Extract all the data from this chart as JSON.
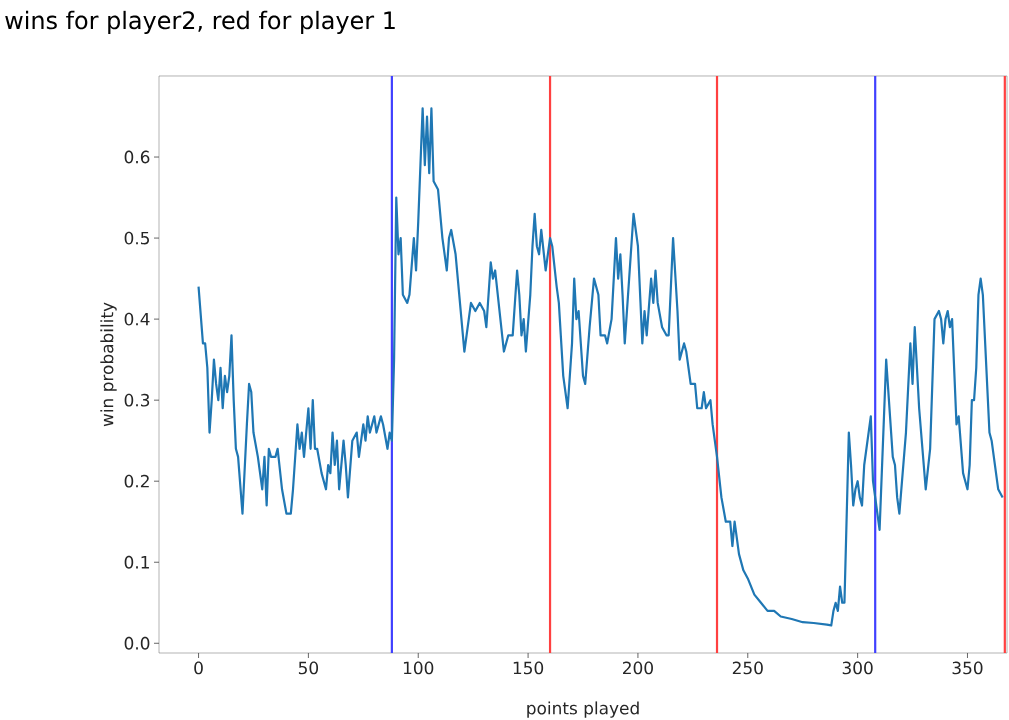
{
  "chart_data": {
    "type": "line",
    "title": "wins for player2, red for player 1",
    "xlabel": "points played",
    "ylabel": "win probability",
    "xlim": [
      -18,
      368
    ],
    "ylim": [
      -0.012,
      0.7
    ],
    "xticks": [
      0,
      50,
      100,
      150,
      200,
      250,
      300,
      350
    ],
    "yticks": [
      {
        "value": 0,
        "label": "0.0"
      },
      {
        "value": 0.1,
        "label": "0.1"
      },
      {
        "value": 0.2,
        "label": "0.2"
      },
      {
        "value": 0.3,
        "label": "0.3"
      },
      {
        "value": 0.4,
        "label": "0.4"
      },
      {
        "value": 0.5,
        "label": "0.5"
      },
      {
        "value": 0.6,
        "label": "0.6"
      }
    ],
    "grid": false,
    "ref_lines": [
      {
        "axis": "x",
        "value": 88,
        "color": "#4040ff"
      },
      {
        "axis": "x",
        "value": 160,
        "color": "#ff4040"
      },
      {
        "axis": "x",
        "value": 236,
        "color": "#ff4040"
      },
      {
        "axis": "x",
        "value": 308,
        "color": "#4040ff"
      },
      {
        "axis": "x",
        "value": 367,
        "color": "#ff4040"
      }
    ],
    "series": [
      {
        "color": "#1f77b4",
        "x": [
          0,
          2,
          3,
          4,
          5,
          6,
          7,
          8,
          9,
          10,
          11,
          12,
          13,
          14,
          15,
          16,
          17,
          18,
          20,
          22,
          23,
          24,
          25,
          27,
          29,
          30,
          31,
          32,
          33,
          35,
          36,
          38,
          40,
          42,
          43,
          45,
          46,
          47,
          48,
          50,
          51,
          52,
          53,
          54,
          56,
          58,
          59,
          60,
          61,
          62,
          63,
          64,
          66,
          67,
          68,
          70,
          72,
          73,
          75,
          76,
          77,
          78,
          80,
          81,
          83,
          84,
          86,
          87,
          88,
          89,
          90,
          91,
          92,
          93,
          95,
          96,
          98,
          99,
          100,
          102,
          103,
          104,
          105,
          106,
          107,
          109,
          111,
          113,
          114,
          115,
          117,
          119,
          121,
          123,
          124,
          126,
          128,
          130,
          131,
          133,
          134,
          135,
          137,
          139,
          141,
          143,
          145,
          146,
          147,
          148,
          149,
          151,
          152,
          153,
          154,
          155,
          156,
          158,
          160,
          161,
          163,
          164,
          166,
          168,
          170,
          171,
          172,
          173,
          175,
          176,
          178,
          180,
          182,
          183,
          185,
          186,
          188,
          190,
          191,
          192,
          193,
          194,
          196,
          198,
          200,
          202,
          203,
          204,
          206,
          207,
          208,
          209,
          211,
          213,
          214,
          216,
          218,
          219,
          221,
          222,
          224,
          226,
          227,
          229,
          230,
          231,
          233,
          234,
          236,
          238,
          240,
          242,
          243,
          244,
          246,
          248,
          250,
          253,
          256,
          259,
          262,
          265,
          270,
          275,
          280,
          286,
          288,
          289,
          290,
          291,
          292,
          293,
          294,
          296,
          297,
          298,
          299,
          300,
          301,
          302,
          303,
          306,
          307,
          308,
          310,
          313,
          316,
          317,
          318,
          319,
          322,
          324,
          325,
          326,
          328,
          331,
          333,
          335,
          337,
          338,
          339,
          340,
          341,
          342,
          343,
          345,
          346,
          348,
          349,
          350,
          351,
          352,
          353,
          354,
          355,
          356,
          357,
          360,
          361,
          364,
          366
        ],
        "values": [
          0.44,
          0.37,
          0.37,
          0.34,
          0.26,
          0.3,
          0.35,
          0.32,
          0.3,
          0.34,
          0.29,
          0.33,
          0.31,
          0.33,
          0.38,
          0.3,
          0.24,
          0.23,
          0.16,
          0.27,
          0.32,
          0.31,
          0.26,
          0.23,
          0.19,
          0.23,
          0.17,
          0.24,
          0.23,
          0.23,
          0.24,
          0.19,
          0.16,
          0.16,
          0.19,
          0.27,
          0.24,
          0.26,
          0.23,
          0.29,
          0.24,
          0.3,
          0.24,
          0.24,
          0.21,
          0.19,
          0.22,
          0.21,
          0.26,
          0.22,
          0.25,
          0.19,
          0.25,
          0.22,
          0.18,
          0.25,
          0.26,
          0.23,
          0.27,
          0.25,
          0.28,
          0.26,
          0.28,
          0.26,
          0.28,
          0.27,
          0.24,
          0.26,
          0.25,
          0.35,
          0.55,
          0.48,
          0.5,
          0.43,
          0.42,
          0.43,
          0.5,
          0.46,
          0.52,
          0.66,
          0.59,
          0.65,
          0.58,
          0.66,
          0.57,
          0.56,
          0.5,
          0.46,
          0.5,
          0.51,
          0.48,
          0.42,
          0.36,
          0.4,
          0.42,
          0.41,
          0.42,
          0.41,
          0.39,
          0.47,
          0.45,
          0.46,
          0.41,
          0.36,
          0.38,
          0.38,
          0.46,
          0.43,
          0.38,
          0.4,
          0.36,
          0.43,
          0.49,
          0.53,
          0.49,
          0.48,
          0.51,
          0.46,
          0.5,
          0.49,
          0.44,
          0.42,
          0.33,
          0.29,
          0.37,
          0.45,
          0.4,
          0.41,
          0.33,
          0.32,
          0.39,
          0.45,
          0.43,
          0.38,
          0.38,
          0.37,
          0.4,
          0.5,
          0.45,
          0.48,
          0.43,
          0.37,
          0.45,
          0.53,
          0.49,
          0.37,
          0.41,
          0.38,
          0.45,
          0.42,
          0.46,
          0.42,
          0.39,
          0.38,
          0.38,
          0.5,
          0.41,
          0.35,
          0.37,
          0.36,
          0.32,
          0.32,
          0.29,
          0.29,
          0.31,
          0.29,
          0.3,
          0.27,
          0.23,
          0.18,
          0.15,
          0.15,
          0.12,
          0.15,
          0.11,
          0.09,
          0.08,
          0.06,
          0.05,
          0.04,
          0.04,
          0.033,
          0.03,
          0.026,
          0.025,
          0.023,
          0.022,
          0.04,
          0.05,
          0.04,
          0.07,
          0.05,
          0.05,
          0.26,
          0.22,
          0.17,
          0.19,
          0.2,
          0.18,
          0.17,
          0.22,
          0.28,
          0.2,
          0.18,
          0.14,
          0.35,
          0.23,
          0.22,
          0.18,
          0.16,
          0.26,
          0.37,
          0.32,
          0.39,
          0.29,
          0.19,
          0.24,
          0.4,
          0.41,
          0.4,
          0.37,
          0.4,
          0.41,
          0.39,
          0.4,
          0.27,
          0.28,
          0.21,
          0.2,
          0.19,
          0.22,
          0.3,
          0.3,
          0.34,
          0.43,
          0.45,
          0.43,
          0.26,
          0.25,
          0.19,
          0.18
        ]
      }
    ]
  }
}
